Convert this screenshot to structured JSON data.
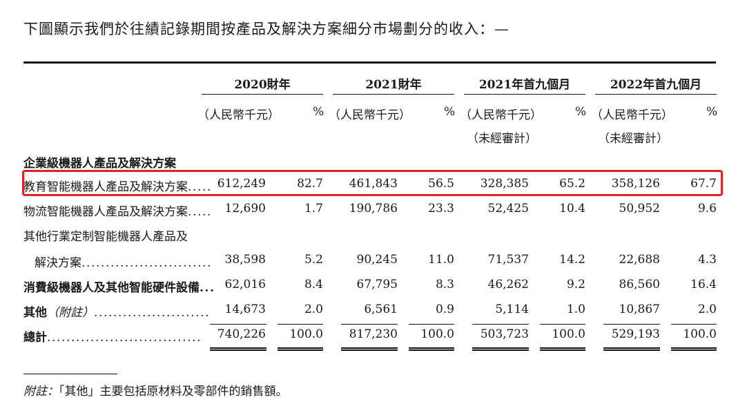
{
  "intro": "下圖顯示我們於往績記錄期間按產品及解決方案細分市場劃分的收入：—",
  "periods": [
    "2020財年",
    "2021財年",
    "2021年首九個月",
    "2022年首九個月"
  ],
  "unit": "（人民幣千元）",
  "unit_short": "%",
  "unaudited": "（未經審計）",
  "section_title": "企業級機器人產品及解決方案",
  "rows": [
    {
      "label": "教育智能機器人產品及解決方案",
      "dots": ".....",
      "values": [
        "612,249",
        "82.7",
        "461,843",
        "56.5",
        "328,385",
        "65.2",
        "358,126",
        "67.7"
      ],
      "highlighted": true
    },
    {
      "label": "物流智能機器人產品及解決方案",
      "dots": ".....",
      "values": [
        "12,690",
        "1.7",
        "190,786",
        "23.3",
        "52,425",
        "10.4",
        "50,952",
        "9.6"
      ]
    },
    {
      "label": "其他行業定制智能機器人產品及",
      "dots": "",
      "values": []
    },
    {
      "label": "解決方案",
      "dots": "...........................",
      "values": [
        "38,598",
        "5.2",
        "90,245",
        "11.0",
        "71,537",
        "14.2",
        "22,688",
        "4.3"
      ]
    },
    {
      "label": "消費級機器人及其他智能硬件設備",
      "dots": "...",
      "values": [
        "62,016",
        "8.4",
        "67,795",
        "8.3",
        "46,262",
        "9.2",
        "86,560",
        "16.4"
      ]
    },
    {
      "label": "其他",
      "label_note": "（附註）",
      "dots": "........................",
      "values": [
        "14,673",
        "2.0",
        "6,561",
        "0.9",
        "5,114",
        "1.0",
        "10,867",
        "2.0"
      ]
    },
    {
      "label": "總計",
      "dots": "................................",
      "values": [
        "740,226",
        "100.0",
        "817,230",
        "100.0",
        "503,723",
        "100.0",
        "529,193",
        "100.0"
      ]
    }
  ],
  "note_lead": "附註：",
  "note_text": "「其他」主要包括原材料及零部件的銷售額。"
}
